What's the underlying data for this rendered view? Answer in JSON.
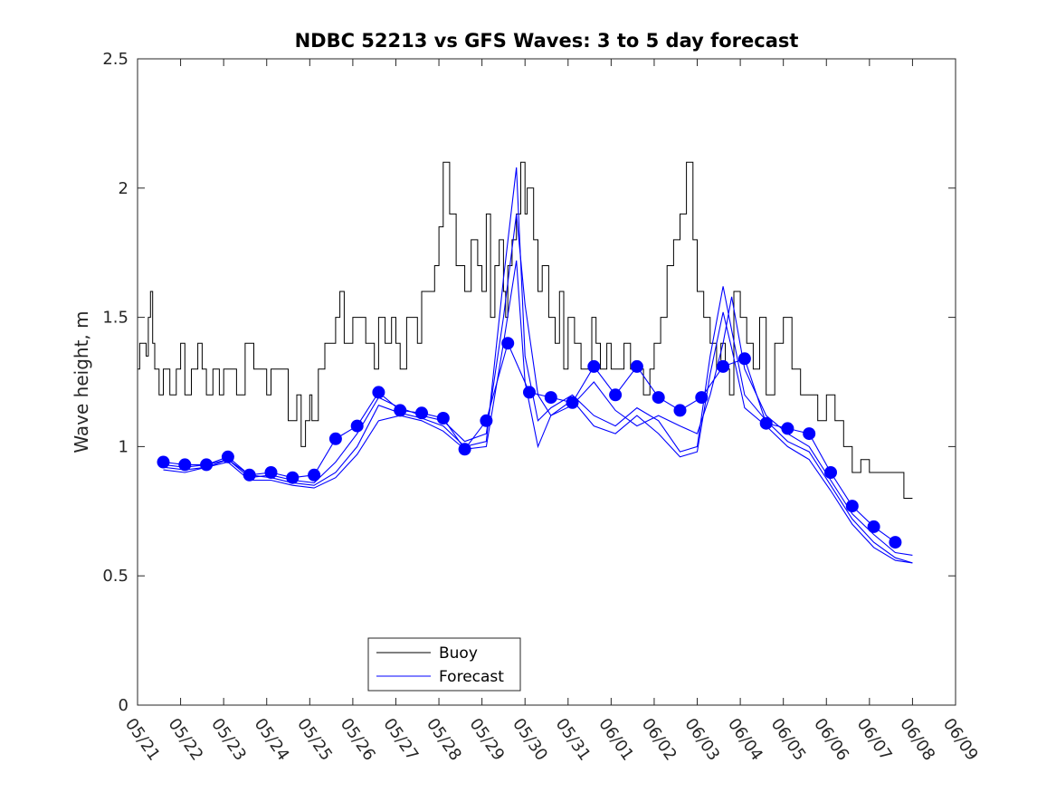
{
  "chart_data": {
    "type": "line",
    "title": "NDBC 52213 vs GFS Waves: 3 to 5 day forecast",
    "xlabel": "",
    "ylabel": "Wave height, m",
    "xlim": [
      "05/21",
      "06/09"
    ],
    "ylim": [
      0,
      2.5
    ],
    "x_tick_labels": [
      "05/21",
      "05/22",
      "05/23",
      "05/24",
      "05/25",
      "05/26",
      "05/27",
      "05/28",
      "05/29",
      "05/30",
      "05/31",
      "06/01",
      "06/02",
      "06/03",
      "06/04",
      "06/05",
      "06/06",
      "06/07",
      "06/08",
      "06/09"
    ],
    "y_tick_labels": [
      "0",
      "0.5",
      "1",
      "1.5",
      "2",
      "2.5"
    ],
    "y_ticks": [
      0,
      0.5,
      1,
      1.5,
      2,
      2.5
    ],
    "grid": false,
    "legend_position": "bottom-center",
    "legend": [
      {
        "label": "Buoy",
        "color": "#000000"
      },
      {
        "label": "Forecast",
        "color": "#0000ff"
      }
    ],
    "colors": {
      "buoy": "#000000",
      "forecast": "#0000ff"
    },
    "series": [
      {
        "name": "Buoy",
        "color": "#000000",
        "marker": "none",
        "x": [
          0.0,
          0.05,
          0.1,
          0.2,
          0.25,
          0.3,
          0.35,
          0.4,
          0.5,
          0.6,
          0.75,
          0.9,
          1.0,
          1.1,
          1.25,
          1.4,
          1.5,
          1.6,
          1.75,
          1.9,
          2.0,
          2.15,
          2.3,
          2.5,
          2.7,
          2.9,
          3.0,
          3.1,
          3.3,
          3.5,
          3.7,
          3.8,
          3.9,
          4.0,
          4.05,
          4.2,
          4.35,
          4.5,
          4.6,
          4.7,
          4.8,
          5.0,
          5.15,
          5.3,
          5.5,
          5.6,
          5.75,
          5.9,
          6.0,
          6.1,
          6.25,
          6.4,
          6.5,
          6.6,
          6.75,
          6.9,
          7.0,
          7.1,
          7.25,
          7.4,
          7.6,
          7.75,
          7.9,
          8.0,
          8.1,
          8.2,
          8.3,
          8.4,
          8.5,
          8.55,
          8.6,
          8.7,
          8.8,
          8.9,
          9.0,
          9.05,
          9.2,
          9.3,
          9.4,
          9.55,
          9.7,
          9.8,
          9.9,
          10.0,
          10.15,
          10.3,
          10.4,
          10.55,
          10.65,
          10.75,
          10.9,
          11.0,
          11.15,
          11.3,
          11.45,
          11.6,
          11.75,
          11.9,
          12.0,
          12.15,
          12.3,
          12.45,
          12.6,
          12.75,
          12.9,
          13.0,
          13.15,
          13.3,
          13.45,
          13.55,
          13.65,
          13.75,
          13.85,
          14.0,
          14.15,
          14.3,
          14.45,
          14.6,
          14.8,
          15.0,
          15.2,
          15.4,
          15.6,
          15.8,
          16.0,
          16.2,
          16.4,
          16.6,
          16.8,
          17.0,
          17.2,
          17.4,
          17.6,
          17.8,
          18.0
        ],
        "y": [
          1.3,
          1.4,
          1.4,
          1.35,
          1.5,
          1.6,
          1.4,
          1.3,
          1.2,
          1.3,
          1.2,
          1.3,
          1.4,
          1.2,
          1.3,
          1.4,
          1.3,
          1.2,
          1.3,
          1.2,
          1.3,
          1.3,
          1.2,
          1.4,
          1.3,
          1.3,
          1.2,
          1.3,
          1.3,
          1.1,
          1.2,
          1.0,
          1.1,
          1.2,
          1.1,
          1.3,
          1.4,
          1.4,
          1.5,
          1.6,
          1.4,
          1.5,
          1.5,
          1.4,
          1.3,
          1.5,
          1.4,
          1.5,
          1.4,
          1.3,
          1.5,
          1.5,
          1.4,
          1.6,
          1.6,
          1.7,
          1.85,
          2.1,
          1.9,
          1.7,
          1.6,
          1.8,
          1.7,
          1.6,
          1.9,
          1.5,
          1.7,
          1.8,
          1.6,
          1.5,
          1.7,
          1.8,
          1.9,
          2.1,
          1.9,
          2.0,
          1.8,
          1.6,
          1.7,
          1.5,
          1.4,
          1.6,
          1.3,
          1.5,
          1.4,
          1.3,
          1.3,
          1.5,
          1.4,
          1.3,
          1.4,
          1.3,
          1.3,
          1.4,
          1.3,
          1.3,
          1.2,
          1.3,
          1.4,
          1.5,
          1.7,
          1.8,
          1.9,
          2.1,
          1.8,
          1.6,
          1.5,
          1.4,
          1.3,
          1.4,
          1.3,
          1.2,
          1.6,
          1.5,
          1.4,
          1.3,
          1.5,
          1.2,
          1.4,
          1.5,
          1.3,
          1.2,
          1.2,
          1.1,
          1.2,
          1.1,
          1.0,
          0.9,
          0.95,
          0.9,
          0.9,
          0.9,
          0.9,
          0.8,
          0.8
        ]
      },
      {
        "name": "Forecast",
        "color": "#0000ff",
        "marker": "circle",
        "x": [
          0.6,
          1.1,
          1.6,
          2.1,
          2.6,
          3.1,
          3.6,
          4.1,
          4.6,
          5.1,
          5.6,
          6.1,
          6.6,
          7.1,
          7.6,
          8.1,
          8.6,
          9.1,
          9.6,
          10.1,
          10.6,
          11.1,
          11.6,
          12.1,
          12.6,
          13.1,
          13.6,
          14.1,
          14.6,
          15.1,
          15.6,
          16.1,
          16.6,
          17.1,
          17.6
        ],
        "y": [
          0.94,
          0.93,
          0.93,
          0.96,
          0.89,
          0.9,
          0.88,
          0.89,
          1.03,
          1.08,
          1.21,
          1.14,
          1.13,
          1.11,
          0.99,
          1.1,
          1.4,
          1.21,
          1.19,
          1.17,
          1.31,
          1.2,
          1.31,
          1.19,
          1.14,
          1.19,
          1.31,
          1.34,
          1.09,
          1.07,
          1.05,
          0.9,
          0.77,
          0.69,
          0.63
        ]
      },
      {
        "name": "",
        "color": "#0000ff",
        "marker": "none",
        "x": [
          0.6,
          1.1,
          1.6,
          2.1,
          2.6,
          3.1,
          3.6,
          4.1,
          4.6,
          5.1,
          5.6,
          6.1,
          6.6,
          7.1,
          7.6,
          8.1,
          8.5,
          8.8,
          9.0,
          9.3,
          9.6,
          10.1,
          10.6,
          11.1,
          11.6,
          12.1,
          12.6,
          13.0,
          13.3,
          13.6,
          13.8,
          14.1,
          14.6,
          15.1,
          15.6,
          16.1,
          16.6,
          17.1,
          17.6,
          18.0
        ],
        "y": [
          0.92,
          0.91,
          0.92,
          0.95,
          0.88,
          0.89,
          0.87,
          0.86,
          0.94,
          1.05,
          1.19,
          1.15,
          1.12,
          1.1,
          1.02,
          1.05,
          1.5,
          1.9,
          1.55,
          1.2,
          1.12,
          1.16,
          1.25,
          1.14,
          1.08,
          1.12,
          1.08,
          1.05,
          1.2,
          1.4,
          1.58,
          1.3,
          1.12,
          1.05,
          1.0,
          0.87,
          0.74,
          0.66,
          0.59,
          0.58
        ]
      },
      {
        "name": "",
        "color": "#0000ff",
        "marker": "none",
        "x": [
          0.6,
          1.1,
          1.6,
          2.1,
          2.6,
          3.1,
          3.6,
          4.1,
          4.6,
          5.1,
          5.6,
          6.1,
          6.6,
          7.1,
          7.6,
          8.1,
          8.5,
          8.8,
          9.0,
          9.3,
          9.6,
          10.1,
          10.6,
          11.1,
          11.6,
          12.1,
          12.6,
          13.0,
          13.3,
          13.6,
          13.8,
          14.1,
          14.6,
          15.1,
          15.6,
          16.1,
          16.6,
          17.1,
          17.6,
          18.0
        ],
        "y": [
          0.93,
          0.92,
          0.93,
          0.95,
          0.89,
          0.88,
          0.86,
          0.85,
          0.9,
          1.0,
          1.16,
          1.13,
          1.11,
          1.08,
          1.0,
          1.02,
          1.65,
          2.08,
          1.35,
          1.1,
          1.15,
          1.2,
          1.12,
          1.08,
          1.15,
          1.1,
          0.98,
          1.0,
          1.35,
          1.62,
          1.45,
          1.2,
          1.1,
          1.02,
          0.98,
          0.85,
          0.72,
          0.63,
          0.57,
          0.55
        ]
      },
      {
        "name": "",
        "color": "#0000ff",
        "marker": "none",
        "x": [
          0.6,
          1.1,
          1.6,
          2.1,
          2.6,
          3.1,
          3.6,
          4.1,
          4.6,
          5.1,
          5.6,
          6.1,
          6.6,
          7.1,
          7.6,
          8.1,
          8.5,
          8.8,
          9.0,
          9.3,
          9.6,
          10.1,
          10.6,
          11.1,
          11.6,
          12.1,
          12.6,
          13.0,
          13.3,
          13.6,
          13.8,
          14.1,
          14.6,
          15.1,
          15.6,
          16.1,
          16.6,
          17.1,
          17.6,
          18.0
        ],
        "y": [
          0.91,
          0.9,
          0.92,
          0.94,
          0.87,
          0.87,
          0.85,
          0.84,
          0.88,
          0.97,
          1.1,
          1.12,
          1.1,
          1.06,
          0.99,
          1.0,
          1.4,
          1.72,
          1.25,
          1.0,
          1.12,
          1.18,
          1.08,
          1.05,
          1.12,
          1.05,
          0.96,
          0.98,
          1.28,
          1.52,
          1.38,
          1.15,
          1.08,
          1.0,
          0.95,
          0.83,
          0.7,
          0.61,
          0.56,
          0.55
        ]
      }
    ]
  }
}
